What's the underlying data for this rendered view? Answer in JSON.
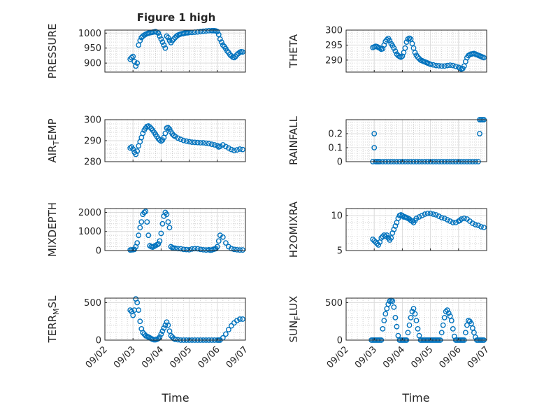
{
  "figure": {
    "title": "Figure 1 high",
    "x_axis_label": "Time",
    "x_tick_labels": [
      "09/02",
      "09/03",
      "09/04",
      "09/05",
      "09/06",
      "09/07"
    ],
    "marker_color": "#0072BD"
  },
  "chart_data": [
    {
      "type": "scatter",
      "id": "pressure",
      "ylabel": "PRESSURE",
      "ylim": [
        870,
        1010
      ],
      "yticks": [
        900,
        950,
        1000
      ],
      "xlim": [
        0,
        5
      ],
      "grid": true,
      "x": [
        0.9,
        0.95,
        1.0,
        1.05,
        1.1,
        1.15,
        1.2,
        1.25,
        1.3,
        1.35,
        1.4,
        1.45,
        1.5,
        1.55,
        1.6,
        1.65,
        1.7,
        1.75,
        1.8,
        1.85,
        1.9,
        1.95,
        2.0,
        2.05,
        2.1,
        2.15,
        2.2,
        2.25,
        2.3,
        2.35,
        2.4,
        2.45,
        2.5,
        2.55,
        2.6,
        2.65,
        2.7,
        2.75,
        2.8,
        2.85,
        2.9,
        2.95,
        3.0,
        3.1,
        3.2,
        3.3,
        3.4,
        3.5,
        3.6,
        3.7,
        3.8,
        3.85,
        3.9,
        3.95,
        4.0,
        4.05,
        4.1,
        4.15,
        4.2,
        4.25,
        4.3,
        4.35,
        4.4,
        4.45,
        4.5,
        4.55,
        4.6,
        4.65,
        4.7,
        4.75,
        4.8,
        4.85,
        4.9
      ],
      "y": [
        913,
        918,
        922,
        905,
        890,
        900,
        960,
        975,
        985,
        990,
        993,
        996,
        998,
        1000,
        1001,
        1002,
        1003,
        1004,
        1005,
        1003,
        1000,
        990,
        980,
        970,
        960,
        950,
        990,
        985,
        975,
        968,
        975,
        980,
        985,
        990,
        993,
        995,
        997,
        998,
        999,
        1000,
        1001,
        1001,
        1002,
        1002,
        1003,
        1004,
        1005,
        1006,
        1007,
        1008,
        1008,
        1008,
        1008,
        1007,
        1005,
        995,
        980,
        970,
        960,
        955,
        948,
        940,
        935,
        928,
        924,
        920,
        918,
        922,
        928,
        932,
        936,
        938,
        937
      ]
    },
    {
      "type": "scatter",
      "id": "theta",
      "ylabel": "THETA",
      "ylim": [
        286,
        300
      ],
      "yticks": [
        290,
        295,
        300
      ],
      "xlim": [
        0,
        5
      ],
      "grid": true,
      "x": [
        0.95,
        1.0,
        1.05,
        1.1,
        1.15,
        1.2,
        1.25,
        1.3,
        1.35,
        1.4,
        1.45,
        1.5,
        1.55,
        1.6,
        1.65,
        1.7,
        1.75,
        1.8,
        1.85,
        1.9,
        1.95,
        2.0,
        2.05,
        2.1,
        2.15,
        2.2,
        2.25,
        2.3,
        2.35,
        2.4,
        2.45,
        2.5,
        2.55,
        2.6,
        2.65,
        2.7,
        2.75,
        2.8,
        2.85,
        2.9,
        2.95,
        3.0,
        3.1,
        3.2,
        3.3,
        3.4,
        3.5,
        3.6,
        3.7,
        3.8,
        3.9,
        4.0,
        4.05,
        4.1,
        4.15,
        4.2,
        4.25,
        4.3,
        4.35,
        4.4,
        4.45,
        4.5,
        4.55,
        4.6,
        4.65,
        4.7,
        4.75,
        4.8,
        4.85,
        4.9
      ],
      "y": [
        294.2,
        294.4,
        294.6,
        294.5,
        294.2,
        294.0,
        293.6,
        293.8,
        295.0,
        296.2,
        296.8,
        297.2,
        296.5,
        295.5,
        294.8,
        294.0,
        293.0,
        292.0,
        291.5,
        291.2,
        291.0,
        291.3,
        292.5,
        294.0,
        296.0,
        297.0,
        297.3,
        297.0,
        295.5,
        294.0,
        292.5,
        291.6,
        291.0,
        290.5,
        290.0,
        289.8,
        289.6,
        289.4,
        289.2,
        289.0,
        288.8,
        288.6,
        288.4,
        288.2,
        288.1,
        288.0,
        288.0,
        288.2,
        288.3,
        288.2,
        287.9,
        287.6,
        287.3,
        287.0,
        287.2,
        288.0,
        289.5,
        290.8,
        291.5,
        291.8,
        292.0,
        292.1,
        292.2,
        292.0,
        291.8,
        291.6,
        291.4,
        291.2,
        291.0,
        290.8
      ]
    },
    {
      "type": "scatter",
      "id": "air_temp",
      "ylabel": "AIR_TEMP",
      "ylim": [
        280,
        300
      ],
      "yticks": [
        280,
        290,
        300
      ],
      "xlim": [
        0,
        5
      ],
      "grid": true,
      "x": [
        0.9,
        0.95,
        1.0,
        1.05,
        1.1,
        1.15,
        1.2,
        1.25,
        1.3,
        1.35,
        1.4,
        1.45,
        1.5,
        1.55,
        1.6,
        1.65,
        1.7,
        1.75,
        1.8,
        1.85,
        1.9,
        1.95,
        2.0,
        2.05,
        2.1,
        2.15,
        2.2,
        2.25,
        2.3,
        2.35,
        2.4,
        2.45,
        2.5,
        2.6,
        2.7,
        2.8,
        2.9,
        3.0,
        3.1,
        3.2,
        3.3,
        3.4,
        3.5,
        3.6,
        3.7,
        3.8,
        3.9,
        4.0,
        4.05,
        4.1,
        4.2,
        4.3,
        4.4,
        4.5,
        4.6,
        4.7,
        4.8,
        4.9
      ],
      "y": [
        286.5,
        287.0,
        286.0,
        284.5,
        283.5,
        285.0,
        287.5,
        289.5,
        291.5,
        293.5,
        295.0,
        296.0,
        296.8,
        297.0,
        296.5,
        295.8,
        295.0,
        294.0,
        293.0,
        292.0,
        291.0,
        290.3,
        289.8,
        290.3,
        291.5,
        293.5,
        296.0,
        296.2,
        295.5,
        294.2,
        293.2,
        292.5,
        292.0,
        291.2,
        290.6,
        290.1,
        289.8,
        289.5,
        289.3,
        289.2,
        289.1,
        289.0,
        289.0,
        288.8,
        288.6,
        288.3,
        288.0,
        287.6,
        287.0,
        287.3,
        288.0,
        287.2,
        286.5,
        285.8,
        285.3,
        285.6,
        286.0,
        285.8
      ]
    },
    {
      "type": "scatter",
      "id": "rainfall",
      "ylabel": "RAINFALL",
      "ylim": [
        0,
        0.3
      ],
      "yticks": [
        0,
        0.1,
        0.2
      ],
      "xlim": [
        0,
        5
      ],
      "grid": true,
      "x": [
        0.95,
        1.0,
        1.0,
        1.05,
        1.1,
        1.15,
        1.2,
        1.3,
        1.4,
        1.5,
        1.6,
        1.7,
        1.8,
        1.9,
        2.0,
        2.1,
        2.2,
        2.3,
        2.4,
        2.5,
        2.6,
        2.7,
        2.8,
        2.9,
        3.0,
        3.1,
        3.2,
        3.3,
        3.4,
        3.5,
        3.6,
        3.7,
        3.8,
        3.9,
        4.0,
        4.1,
        4.2,
        4.3,
        4.4,
        4.5,
        4.6,
        4.7,
        4.75,
        4.75,
        4.8,
        4.85,
        4.9
      ],
      "y": [
        0,
        0.2,
        0.1,
        0,
        0,
        0,
        0,
        0,
        0,
        0,
        0,
        0,
        0,
        0,
        0,
        0,
        0,
        0,
        0,
        0,
        0,
        0,
        0,
        0,
        0,
        0,
        0,
        0,
        0,
        0,
        0,
        0,
        0,
        0,
        0,
        0,
        0,
        0,
        0,
        0,
        0,
        0,
        0.2,
        0.3,
        0.3,
        0.3,
        0.3
      ]
    },
    {
      "type": "scatter",
      "id": "mixdepth",
      "ylabel": "MIXDEPTH",
      "ylim": [
        0,
        2200
      ],
      "yticks": [
        0,
        1000,
        2000
      ],
      "xlim": [
        0,
        5
      ],
      "grid": true,
      "x": [
        0.9,
        0.95,
        1.0,
        1.05,
        1.1,
        1.15,
        1.2,
        1.25,
        1.3,
        1.35,
        1.4,
        1.45,
        1.5,
        1.55,
        1.6,
        1.65,
        1.7,
        1.75,
        1.8,
        1.85,
        1.9,
        1.95,
        2.0,
        2.05,
        2.1,
        2.15,
        2.2,
        2.25,
        2.3,
        2.35,
        2.4,
        2.45,
        2.5,
        2.6,
        2.7,
        2.8,
        2.9,
        3.0,
        3.1,
        3.2,
        3.3,
        3.4,
        3.5,
        3.6,
        3.7,
        3.75,
        3.8,
        3.85,
        3.9,
        3.95,
        4.0,
        4.05,
        4.1,
        4.2,
        4.3,
        4.4,
        4.5,
        4.6,
        4.7,
        4.8,
        4.9
      ],
      "y": [
        30,
        35,
        40,
        60,
        200,
        400,
        800,
        1200,
        1500,
        1900,
        2000,
        2050,
        1500,
        800,
        250,
        200,
        180,
        220,
        260,
        300,
        350,
        500,
        900,
        1400,
        1800,
        2000,
        1900,
        1500,
        1200,
        200,
        150,
        130,
        120,
        100,
        90,
        60,
        50,
        40,
        80,
        100,
        90,
        60,
        40,
        30,
        40,
        20,
        30,
        60,
        80,
        100,
        200,
        500,
        800,
        700,
        400,
        200,
        100,
        60,
        40,
        30,
        30
      ]
    },
    {
      "type": "scatter",
      "id": "h2omixra",
      "ylabel": "H2OMIXRA",
      "ylim": [
        5,
        11
      ],
      "yticks": [
        5,
        10
      ],
      "xlim": [
        0,
        5
      ],
      "grid": true,
      "x": [
        0.95,
        1.0,
        1.05,
        1.1,
        1.15,
        1.2,
        1.25,
        1.3,
        1.35,
        1.4,
        1.45,
        1.5,
        1.55,
        1.6,
        1.65,
        1.7,
        1.75,
        1.8,
        1.85,
        1.9,
        1.95,
        2.0,
        2.05,
        2.1,
        2.15,
        2.2,
        2.25,
        2.3,
        2.35,
        2.4,
        2.45,
        2.5,
        2.6,
        2.7,
        2.8,
        2.9,
        3.0,
        3.1,
        3.2,
        3.3,
        3.4,
        3.5,
        3.6,
        3.7,
        3.8,
        3.9,
        4.0,
        4.05,
        4.1,
        4.2,
        4.3,
        4.4,
        4.5,
        4.6,
        4.7,
        4.8,
        4.9
      ],
      "y": [
        6.6,
        6.4,
        6.2,
        6.0,
        5.8,
        6.2,
        6.8,
        7.0,
        7.2,
        7.0,
        7.2,
        6.8,
        6.5,
        6.8,
        7.5,
        8.0,
        8.5,
        9.0,
        9.6,
        10.0,
        10.1,
        10.0,
        9.8,
        9.8,
        9.7,
        9.6,
        9.5,
        9.3,
        9.2,
        9.0,
        9.3,
        9.6,
        9.8,
        10.0,
        10.2,
        10.3,
        10.3,
        10.2,
        10.1,
        9.9,
        9.7,
        9.6,
        9.4,
        9.2,
        9.0,
        9.0,
        9.2,
        9.3,
        9.5,
        9.6,
        9.5,
        9.2,
        8.9,
        8.7,
        8.6,
        8.4,
        8.3
      ]
    },
    {
      "type": "scatter",
      "id": "terr_msl",
      "ylabel": "TERR_MSL",
      "ylim": [
        0,
        560
      ],
      "yticks": [
        0,
        500
      ],
      "xlim": [
        0,
        5
      ],
      "grid": true,
      "x": [
        0.9,
        0.95,
        1.0,
        1.05,
        1.1,
        1.15,
        1.2,
        1.25,
        1.3,
        1.35,
        1.4,
        1.45,
        1.5,
        1.55,
        1.6,
        1.65,
        1.7,
        1.75,
        1.8,
        1.85,
        1.9,
        1.95,
        2.0,
        2.05,
        2.1,
        2.15,
        2.2,
        2.25,
        2.3,
        2.35,
        2.4,
        2.45,
        2.5,
        2.6,
        2.7,
        2.8,
        2.9,
        3.0,
        3.1,
        3.2,
        3.3,
        3.4,
        3.5,
        3.6,
        3.7,
        3.8,
        3.9,
        4.0,
        4.05,
        4.1,
        4.2,
        4.3,
        4.4,
        4.5,
        4.6,
        4.7,
        4.8,
        4.9
      ],
      "y": [
        400,
        380,
        330,
        400,
        550,
        500,
        400,
        250,
        150,
        100,
        80,
        60,
        50,
        40,
        30,
        20,
        10,
        5,
        5,
        10,
        20,
        40,
        80,
        120,
        160,
        200,
        240,
        200,
        120,
        60,
        40,
        20,
        10,
        5,
        0,
        0,
        0,
        0,
        0,
        0,
        0,
        0,
        0,
        0,
        0,
        0,
        0,
        0,
        0,
        0,
        30,
        80,
        140,
        190,
        230,
        260,
        280,
        280
      ]
    },
    {
      "type": "scatter",
      "id": "sun_flux",
      "ylabel": "SUN_FLUX",
      "ylim": [
        0,
        560
      ],
      "yticks": [
        0,
        500
      ],
      "xlim": [
        0,
        5
      ],
      "grid": true,
      "x": [
        0.9,
        0.95,
        1.0,
        1.05,
        1.1,
        1.15,
        1.2,
        1.25,
        1.3,
        1.35,
        1.4,
        1.45,
        1.5,
        1.55,
        1.6,
        1.65,
        1.7,
        1.75,
        1.8,
        1.85,
        1.9,
        1.95,
        2.0,
        2.05,
        2.1,
        2.15,
        2.2,
        2.25,
        2.3,
        2.35,
        2.4,
        2.45,
        2.5,
        2.55,
        2.6,
        2.65,
        2.7,
        2.75,
        2.8,
        2.85,
        2.9,
        2.95,
        3.0,
        3.05,
        3.1,
        3.15,
        3.2,
        3.25,
        3.3,
        3.35,
        3.4,
        3.45,
        3.5,
        3.55,
        3.6,
        3.65,
        3.7,
        3.75,
        3.8,
        3.85,
        3.9,
        3.95,
        4.0,
        4.05,
        4.1,
        4.15,
        4.2,
        4.25,
        4.3,
        4.35,
        4.4,
        4.45,
        4.5,
        4.55,
        4.6,
        4.65,
        4.7,
        4.75,
        4.8,
        4.85,
        4.9
      ],
      "y": [
        0,
        0,
        0,
        0,
        0,
        0,
        0,
        0,
        150,
        260,
        350,
        420,
        480,
        520,
        530,
        520,
        440,
        300,
        180,
        60,
        0,
        0,
        0,
        0,
        0,
        0,
        100,
        200,
        300,
        380,
        420,
        350,
        260,
        150,
        60,
        0,
        0,
        0,
        0,
        0,
        0,
        0,
        0,
        0,
        0,
        0,
        0,
        0,
        0,
        0,
        100,
        200,
        300,
        380,
        400,
        360,
        320,
        260,
        150,
        50,
        0,
        0,
        0,
        0,
        0,
        0,
        0,
        100,
        200,
        260,
        250,
        220,
        160,
        100,
        40,
        0,
        0,
        0,
        0,
        0,
        0
      ]
    }
  ]
}
